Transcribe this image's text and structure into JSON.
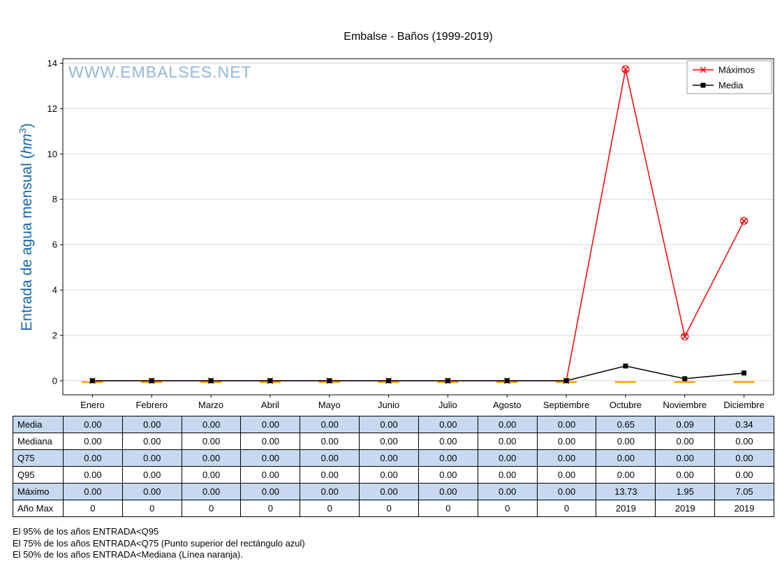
{
  "title": "Embalse - Baños (1999-2019)",
  "watermark": "WWW.EMBALSES.NET",
  "ylabel": {
    "prefix": "Entrada de agua mensual (",
    "unit": "hm",
    "exp": "3",
    "suffix": ")",
    "full": "Entrada de agua mensual (hm³)"
  },
  "colors": {
    "max_red": "#ff0000",
    "media_black": "#000000",
    "mediana_orange": "#ffa500",
    "table_shaded_blue": "#c6d9f0",
    "watermark_blue": "#92b7d7",
    "ylabel_blue": "#1763a8",
    "grid_gray": "#d9d9d9"
  },
  "chart_data": {
    "type": "line",
    "title": "Embalse - Baños (1999-2019)",
    "xlabel": "",
    "ylabel": "Entrada de agua mensual (hm³)",
    "categories": [
      "Enero",
      "Febrero",
      "Marzo",
      "Abril",
      "Mayo",
      "Junio",
      "Julio",
      "Agosto",
      "Septiembre",
      "Octubre",
      "Noviembre",
      "Diciembre"
    ],
    "series": [
      {
        "name": "Máximos",
        "color": "#ff0000",
        "marker": "x",
        "show_in_legend": true,
        "values": [
          0.0,
          0.0,
          0.0,
          0.0,
          0.0,
          0.0,
          0.0,
          0.0,
          0.0,
          13.73,
          1.95,
          7.05
        ]
      },
      {
        "name": "Media",
        "color": "#000000",
        "marker": "square",
        "show_in_legend": true,
        "values": [
          0.0,
          0.0,
          0.0,
          0.0,
          0.0,
          0.0,
          0.0,
          0.0,
          0.0,
          0.65,
          0.09,
          0.34
        ]
      },
      {
        "name": "Mediana",
        "color": "#ffa500",
        "marker": "hline",
        "show_in_legend": false,
        "values": [
          0.0,
          0.0,
          0.0,
          0.0,
          0.0,
          0.0,
          0.0,
          0.0,
          0.0,
          0.0,
          0.0,
          0.0
        ]
      }
    ],
    "yticks": [
      0,
      2,
      4,
      6,
      8,
      10,
      12,
      14
    ],
    "ylim": [
      -0.62,
      14.2
    ],
    "grid": true,
    "legend_position": "top-right"
  },
  "table": {
    "rows": [
      {
        "label": "Media",
        "shaded": true,
        "values": [
          "0.00",
          "0.00",
          "0.00",
          "0.00",
          "0.00",
          "0.00",
          "0.00",
          "0.00",
          "0.00",
          "0.65",
          "0.09",
          "0.34"
        ]
      },
      {
        "label": "Mediana",
        "shaded": false,
        "values": [
          "0.00",
          "0.00",
          "0.00",
          "0.00",
          "0.00",
          "0.00",
          "0.00",
          "0.00",
          "0.00",
          "0.00",
          "0.00",
          "0.00"
        ]
      },
      {
        "label": "Q75",
        "shaded": true,
        "values": [
          "0.00",
          "0.00",
          "0.00",
          "0.00",
          "0.00",
          "0.00",
          "0.00",
          "0.00",
          "0.00",
          "0.00",
          "0.00",
          "0.00"
        ]
      },
      {
        "label": "Q95",
        "shaded": false,
        "values": [
          "0.00",
          "0.00",
          "0.00",
          "0.00",
          "0.00",
          "0.00",
          "0.00",
          "0.00",
          "0.00",
          "0.00",
          "0.00",
          "0.00"
        ]
      },
      {
        "label": "Máximo",
        "shaded": true,
        "values": [
          "0.00",
          "0.00",
          "0.00",
          "0.00",
          "0.00",
          "0.00",
          "0.00",
          "0.00",
          "0.00",
          "13.73",
          "1.95",
          "7.05"
        ]
      },
      {
        "label": "Año Max",
        "shaded": false,
        "values": [
          "0",
          "0",
          "0",
          "0",
          "0",
          "0",
          "0",
          "0",
          "0",
          "2019",
          "2019",
          "2019"
        ]
      }
    ]
  },
  "footnotes": [
    "El 95% de los años ENTRADA<Q95",
    "El 75% de los años ENTRADA<Q75 (Punto superior del rectángulo azul)",
    "El 50% de los años ENTRADA<Mediana (Línea naranja)."
  ]
}
